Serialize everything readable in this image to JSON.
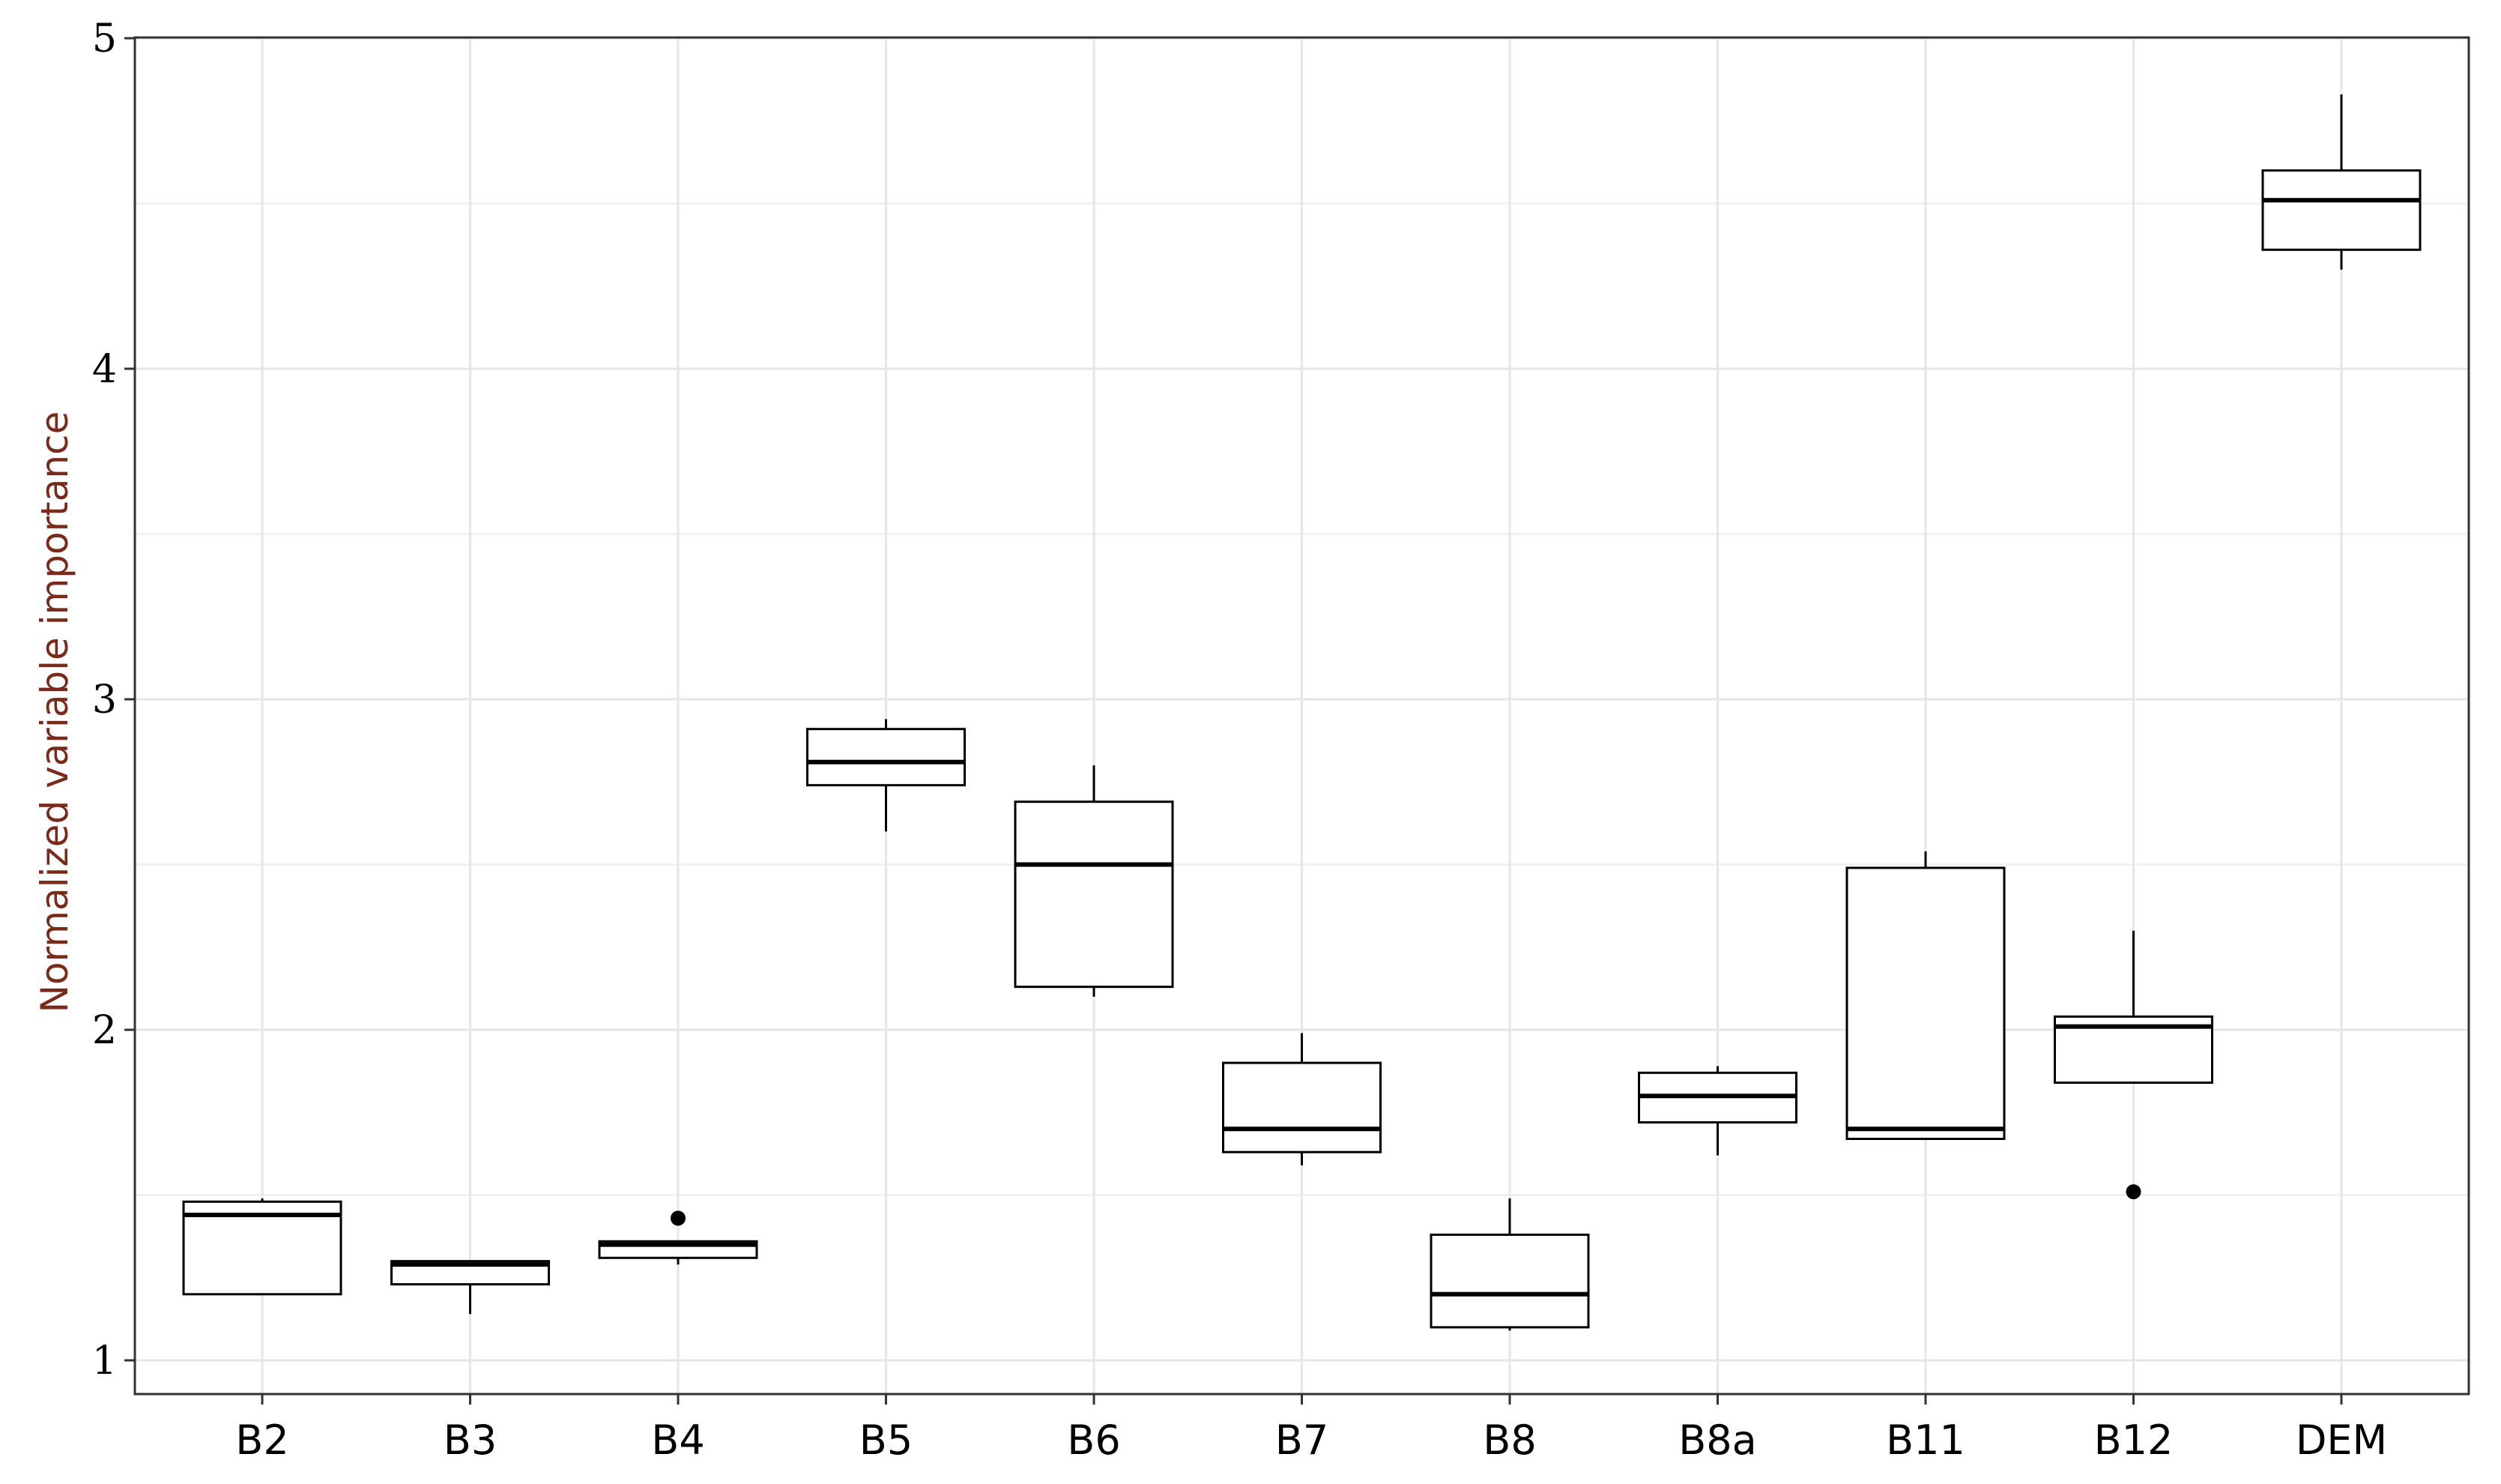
{
  "chart_data": {
    "type": "boxplot",
    "title": "",
    "xlabel": "",
    "ylabel": "Normalized variable importance",
    "ylim": [
      0.95,
      5.0
    ],
    "yticks": [
      1,
      2,
      3,
      4,
      5
    ],
    "grid": true,
    "legend": "none",
    "colors": {
      "box_stroke": "#000000",
      "box_fill": "#ffffff",
      "grid": "#e6e6e6",
      "ylabel": "#7a2a1a"
    },
    "categories": [
      "B2",
      "B3",
      "B4",
      "B5",
      "B6",
      "B7",
      "B8",
      "B8a",
      "B11",
      "B12",
      "DEM"
    ],
    "boxes": [
      {
        "label": "B2",
        "whisker_low": 1.2,
        "q1": 1.2,
        "median": 1.44,
        "q3": 1.48,
        "whisker_high": 1.49,
        "outliers": []
      },
      {
        "label": "B3",
        "whisker_low": 1.14,
        "q1": 1.23,
        "median": 1.29,
        "q3": 1.3,
        "whisker_high": 1.3,
        "outliers": []
      },
      {
        "label": "B4",
        "whisker_low": 1.29,
        "q1": 1.31,
        "median": 1.35,
        "q3": 1.36,
        "whisker_high": 1.36,
        "outliers": [
          1.43
        ]
      },
      {
        "label": "B5",
        "whisker_low": 2.6,
        "q1": 2.74,
        "median": 2.81,
        "q3": 2.91,
        "whisker_high": 2.94,
        "outliers": []
      },
      {
        "label": "B6",
        "whisker_low": 2.1,
        "q1": 2.13,
        "median": 2.5,
        "q3": 2.69,
        "whisker_high": 2.8,
        "outliers": []
      },
      {
        "label": "B7",
        "whisker_low": 1.59,
        "q1": 1.63,
        "median": 1.7,
        "q3": 1.9,
        "whisker_high": 1.99,
        "outliers": []
      },
      {
        "label": "B8",
        "whisker_low": 1.09,
        "q1": 1.1,
        "median": 1.2,
        "q3": 1.38,
        "whisker_high": 1.49,
        "outliers": []
      },
      {
        "label": "B8a",
        "whisker_low": 1.62,
        "q1": 1.72,
        "median": 1.8,
        "q3": 1.87,
        "whisker_high": 1.89,
        "outliers": []
      },
      {
        "label": "B11",
        "whisker_low": 1.67,
        "q1": 1.67,
        "median": 1.7,
        "q3": 2.49,
        "whisker_high": 2.54,
        "outliers": []
      },
      {
        "label": "B12",
        "whisker_low": 1.84,
        "q1": 1.84,
        "median": 2.01,
        "q3": 2.04,
        "whisker_high": 2.3,
        "outliers": [
          1.51
        ]
      },
      {
        "label": "DEM",
        "whisker_low": 4.3,
        "q1": 4.36,
        "median": 4.51,
        "q3": 4.6,
        "whisker_high": 4.83,
        "outliers": []
      }
    ]
  }
}
